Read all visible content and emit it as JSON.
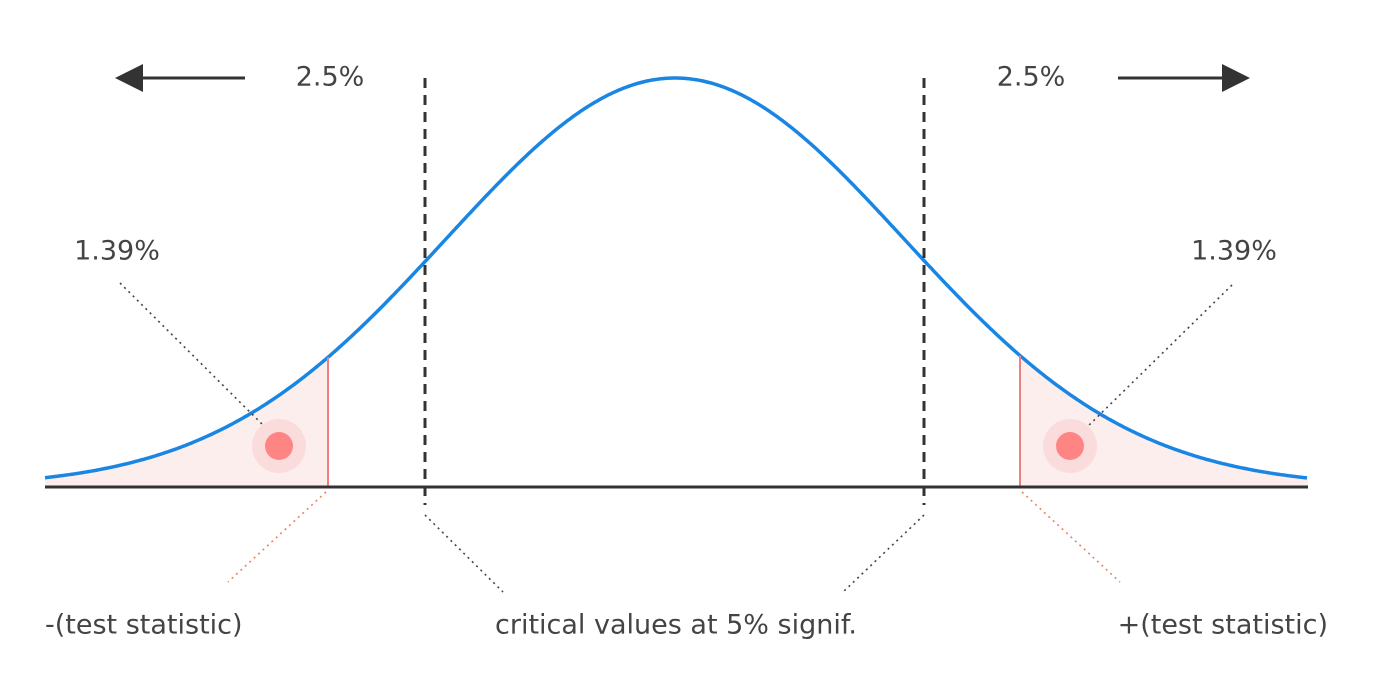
{
  "annotations": {
    "left_tail": "2.5%",
    "right_tail": "2.5%",
    "left_area": "1.39%",
    "right_area": "1.39%"
  },
  "labels": {
    "negative_statistic": "-(test statistic)",
    "critical_values": "critical values at 5% signif.",
    "positive_statistic": "+(test statistic)"
  }
}
